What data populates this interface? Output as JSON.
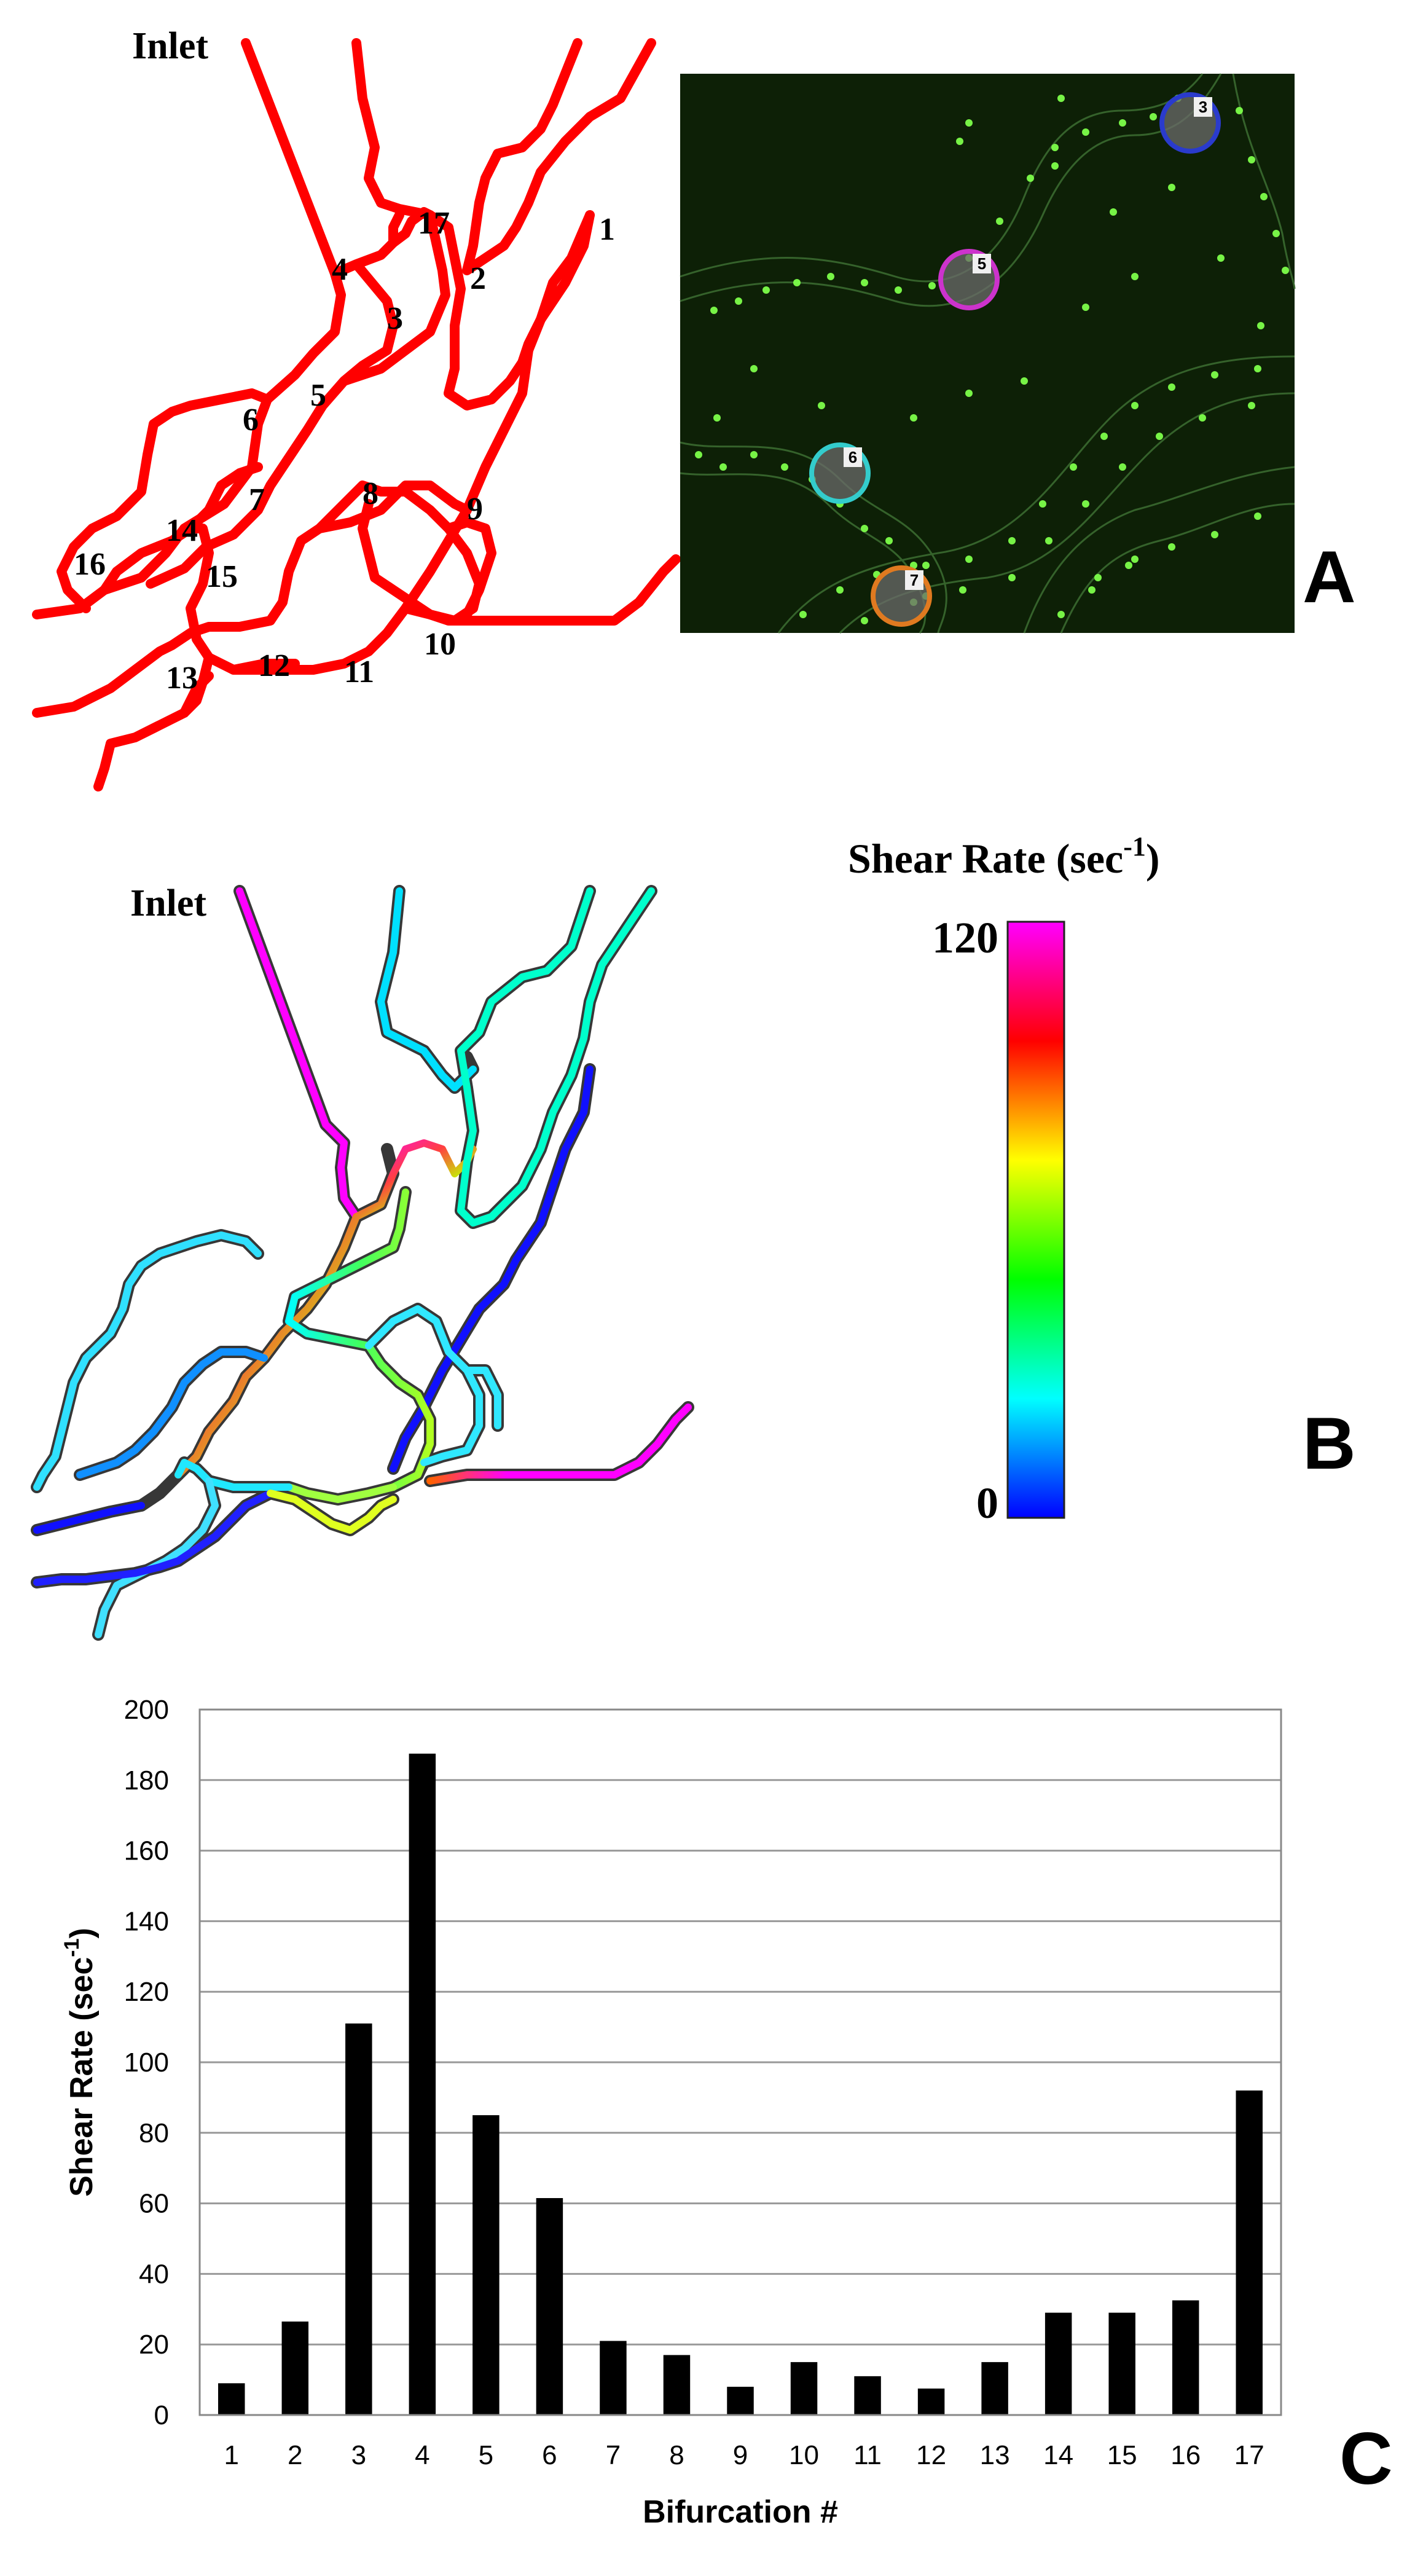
{
  "panel_a": {
    "letter": "A",
    "inlet_label": "Inlet",
    "bifurcation_labels": [
      "1",
      "2",
      "3",
      "4",
      "5",
      "6",
      "7",
      "8",
      "9",
      "10",
      "11",
      "12",
      "13",
      "14",
      "15",
      "16",
      "17"
    ],
    "network_color": "#ff0000",
    "micrograph": {
      "background": "#0d2006",
      "bead_color": "#7dff4a",
      "markers": [
        {
          "label": "3",
          "ring_color": "#2a3bcc"
        },
        {
          "label": "5",
          "ring_color": "#cc33cc"
        },
        {
          "label": "6",
          "ring_color": "#33cccc"
        },
        {
          "label": "7",
          "ring_color": "#e07a20"
        }
      ]
    }
  },
  "panel_b": {
    "letter": "B",
    "inlet_label": "Inlet",
    "colorbar": {
      "title_main": "Shear Rate (sec",
      "title_sup": "-1",
      "title_close": ")",
      "max_label": "120",
      "min_label": "0",
      "min_value": 0,
      "max_value": 120,
      "stops": [
        "#0000ff",
        "#00ffff",
        "#00ff00",
        "#ffff00",
        "#ff0000",
        "#ff00ff"
      ]
    }
  },
  "panel_c": {
    "letter": "C",
    "chart_data": {
      "type": "bar",
      "categories": [
        "1",
        "2",
        "3",
        "4",
        "5",
        "6",
        "7",
        "8",
        "9",
        "10",
        "11",
        "12",
        "13",
        "14",
        "15",
        "16",
        "17"
      ],
      "values": [
        9,
        26.5,
        111,
        187.5,
        85,
        61.5,
        21,
        17,
        8,
        15,
        11,
        7.5,
        15,
        29,
        29,
        32.5,
        92
      ],
      "title": "",
      "xlabel": "Bifurcation #",
      "ylabel_main": "Shear Rate (sec",
      "ylabel_sup": "-1",
      "ylabel_close": ")",
      "ylim": [
        0,
        200
      ],
      "yticks": [
        "0",
        "20",
        "40",
        "60",
        "80",
        "100",
        "120",
        "140",
        "160",
        "180",
        "200"
      ],
      "grid": true,
      "bar_color": "#000000"
    }
  }
}
